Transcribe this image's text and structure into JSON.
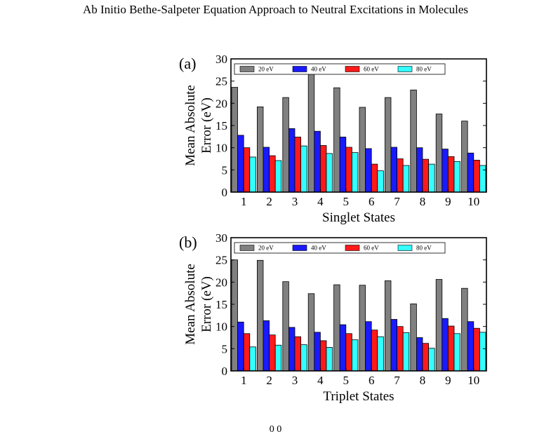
{
  "page": {
    "header": "Ab Initio Bethe-Salpeter Equation Approach to Neutral Excitations in Molecules",
    "footer_fragment": "0 0"
  },
  "chart_data": [
    {
      "type": "bar",
      "panel_label": "(a)",
      "title": "",
      "xlabel": "Singlet States",
      "ylabel": "Mean Absolute Error (eV)",
      "categories": [
        "1",
        "2",
        "3",
        "4",
        "5",
        "6",
        "7",
        "8",
        "9",
        "10"
      ],
      "ylim": [
        0,
        30
      ],
      "yticks": [
        0,
        5,
        10,
        15,
        20,
        25,
        30
      ],
      "legend_position": "top",
      "series": [
        {
          "name": "20 eV",
          "color": "#808080",
          "values": [
            23.6,
            19.2,
            21.3,
            26.6,
            23.5,
            19.1,
            21.3,
            23.0,
            17.6,
            16.0
          ]
        },
        {
          "name": "40 eV",
          "color": "#1a1aff",
          "values": [
            12.8,
            10.1,
            14.3,
            13.7,
            12.4,
            9.8,
            10.1,
            10.0,
            9.7,
            8.8
          ]
        },
        {
          "name": "60 eV",
          "color": "#ff1a1a",
          "values": [
            10.0,
            8.2,
            12.4,
            10.5,
            10.1,
            6.3,
            7.5,
            7.4,
            8.0,
            7.2
          ]
        },
        {
          "name": "80 eV",
          "color": "#33ffff",
          "values": [
            7.9,
            7.1,
            10.4,
            8.7,
            8.9,
            4.8,
            6.0,
            6.3,
            6.9,
            6.0
          ]
        }
      ]
    },
    {
      "type": "bar",
      "panel_label": "(b)",
      "title": "",
      "xlabel": "Triplet States",
      "ylabel": "Mean Absolute Error (eV)",
      "categories": [
        "1",
        "2",
        "3",
        "4",
        "5",
        "6",
        "7",
        "8",
        "9",
        "10"
      ],
      "ylim": [
        0,
        30
      ],
      "yticks": [
        0,
        5,
        10,
        15,
        20,
        25,
        30
      ],
      "legend_position": "top",
      "series": [
        {
          "name": "20 eV",
          "color": "#808080",
          "values": [
            25.0,
            24.9,
            20.1,
            17.4,
            19.4,
            19.3,
            20.3,
            15.1,
            20.6,
            18.6
          ]
        },
        {
          "name": "40 eV",
          "color": "#1a1aff",
          "values": [
            11.0,
            11.3,
            9.8,
            8.7,
            10.4,
            11.1,
            11.6,
            7.5,
            11.8,
            11.1
          ]
        },
        {
          "name": "60 eV",
          "color": "#ff1a1a",
          "values": [
            8.4,
            8.1,
            7.7,
            6.8,
            8.4,
            9.2,
            10.0,
            6.2,
            10.1,
            9.6
          ]
        },
        {
          "name": "80 eV",
          "color": "#33ffff",
          "values": [
            5.4,
            5.8,
            5.9,
            5.3,
            7.0,
            7.7,
            8.6,
            5.1,
            8.4,
            8.7
          ]
        }
      ]
    }
  ]
}
